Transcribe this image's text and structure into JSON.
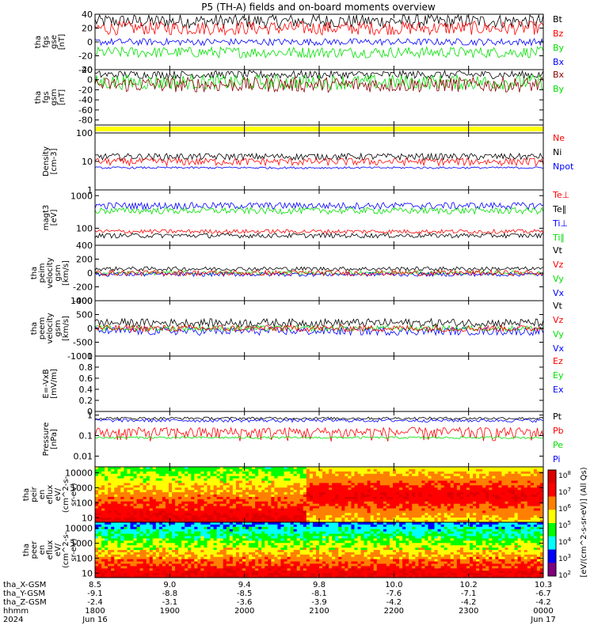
{
  "title": "P5 (TH-A) fields and on-board moments overview",
  "colors": {
    "black": "#000000",
    "red": "#ff0000",
    "green": "#00e000",
    "blue": "#0000ff",
    "darkred": "#8b0000",
    "yellow": "#ffff00"
  },
  "chart_data": [
    {
      "id": "fgs-gse",
      "type": "line",
      "ylabel": [
        "tha",
        "fgs",
        "gse",
        "[nT]"
      ],
      "ylim": [
        -40,
        40
      ],
      "yticks": [
        40,
        20,
        0,
        -20,
        -40
      ],
      "legend": [
        {
          "name": "Bt",
          "color": "#000000"
        },
        {
          "name": "Bz",
          "color": "#ff0000"
        },
        {
          "name": "By",
          "color": "#00e000"
        },
        {
          "name": "Bx",
          "color": "#0000ff"
        }
      ],
      "series": [
        {
          "name": "Bt",
          "color": "#000000",
          "base": 30,
          "noise": 10
        },
        {
          "name": "Bz",
          "color": "#ff0000",
          "base": 20,
          "noise": 10
        },
        {
          "name": "By",
          "color": "#00e000",
          "base": -15,
          "noise": 8
        },
        {
          "name": "Bx",
          "color": "#0000ff",
          "base": 0,
          "noise": 5
        }
      ]
    },
    {
      "id": "fgs-gsm",
      "type": "line",
      "ylabel": [
        "tha",
        "fgs",
        "gsm",
        "[nT]"
      ],
      "ylim": [
        -90,
        20
      ],
      "yticks": [
        20,
        0,
        -20,
        -40,
        -60,
        -80
      ],
      "legend": [
        {
          "name": "Bx",
          "color": "#8b0000"
        },
        {
          "name": "By",
          "color": "#00e000"
        }
      ],
      "series": [
        {
          "name": "Bt",
          "color": "#000000",
          "base": 10,
          "noise": 8
        },
        {
          "name": "By",
          "color": "#00e000",
          "base": -5,
          "noise": 15
        },
        {
          "name": "Bx",
          "color": "#8b0000",
          "base": -10,
          "noise": 15
        }
      ]
    },
    {
      "id": "flag",
      "type": "area",
      "ylabel": [],
      "legend": [],
      "series": []
    },
    {
      "id": "density",
      "type": "line",
      "log": true,
      "ylabel": [
        "Density",
        "[cm-3]"
      ],
      "ylim": [
        1,
        100
      ],
      "yticks": [
        100,
        10,
        1
      ],
      "legend": [
        {
          "name": "Ne",
          "color": "#ff0000"
        },
        {
          "name": "Ni",
          "color": "#000000"
        },
        {
          "name": "Npot",
          "color": "#0000ff"
        }
      ],
      "series": [
        {
          "name": "Ni",
          "color": "#000000",
          "base": 15,
          "noise": 4
        },
        {
          "name": "Ne",
          "color": "#ff0000",
          "base": 10,
          "noise": 3
        },
        {
          "name": "Npot",
          "color": "#0000ff",
          "base": 6,
          "noise": 0.5
        }
      ]
    },
    {
      "id": "temperature",
      "type": "line",
      "log": true,
      "ylabel": [
        "magt3",
        "[eV]"
      ],
      "ylim": [
        30,
        1500
      ],
      "yticks": [
        1000,
        100
      ],
      "legend": [
        {
          "name": "Te⊥",
          "color": "#ff0000"
        },
        {
          "name": "Te∥",
          "color": "#000000"
        },
        {
          "name": "Ti⊥",
          "color": "#0000ff"
        },
        {
          "name": "Ti∥",
          "color": "#00e000"
        }
      ],
      "series": [
        {
          "name": "Ti⊥",
          "color": "#0000ff",
          "base": 500,
          "noise": 120
        },
        {
          "name": "Ti∥",
          "color": "#00e000",
          "base": 350,
          "noise": 80
        },
        {
          "name": "Te⊥",
          "color": "#ff0000",
          "base": 80,
          "noise": 12
        },
        {
          "name": "Te∥",
          "color": "#000000",
          "base": 60,
          "noise": 10
        }
      ]
    },
    {
      "id": "peim-velocity",
      "type": "line",
      "ylabel": [
        "tha",
        "peim",
        "velocity",
        "gsm",
        "[km/s]"
      ],
      "ylim": [
        -400,
        400
      ],
      "yticks": [
        400,
        200,
        0,
        -200,
        -400
      ],
      "legend": [
        {
          "name": "Vt",
          "color": "#000000"
        },
        {
          "name": "Vz",
          "color": "#ff0000"
        },
        {
          "name": "Vy",
          "color": "#00e000"
        },
        {
          "name": "Vx",
          "color": "#0000ff"
        }
      ],
      "series": [
        {
          "name": "Vt",
          "color": "#000000",
          "base": 60,
          "noise": 30
        },
        {
          "name": "Vy",
          "color": "#00e000",
          "base": 0,
          "noise": 30
        },
        {
          "name": "Vx",
          "color": "#0000ff",
          "base": -20,
          "noise": 30
        },
        {
          "name": "Vz",
          "color": "#ff0000",
          "base": 0,
          "noise": 40
        }
      ]
    },
    {
      "id": "peem-velocity",
      "type": "line",
      "ylabel": [
        "tha",
        "peem",
        "velocity",
        "gsm",
        "[km/s]"
      ],
      "ylim": [
        -1000,
        1000
      ],
      "yticks": [
        1000,
        500,
        0,
        -500,
        -1000
      ],
      "legend": [
        {
          "name": "Vt",
          "color": "#000000"
        },
        {
          "name": "Vz",
          "color": "#ff0000"
        },
        {
          "name": "Vy",
          "color": "#00e000"
        },
        {
          "name": "Vx",
          "color": "#0000ff"
        }
      ],
      "series": [
        {
          "name": "Vt",
          "color": "#000000",
          "base": 200,
          "noise": 150
        },
        {
          "name": "Vx",
          "color": "#0000ff",
          "base": -100,
          "noise": 150
        },
        {
          "name": "Vy",
          "color": "#00e000",
          "base": 0,
          "noise": 100
        },
        {
          "name": "Vz",
          "color": "#ff0000",
          "base": 0,
          "noise": 120
        }
      ]
    },
    {
      "id": "efield",
      "type": "line",
      "ylabel": [
        "E=-VxB",
        "[mV/m]"
      ],
      "ylim": [
        0,
        1
      ],
      "yticks": [
        1.0,
        0.8,
        0.6,
        0.4,
        0.2,
        0.0
      ],
      "legend": [
        {
          "name": "Ez",
          "color": "#ff0000"
        },
        {
          "name": "Ey",
          "color": "#00e000"
        },
        {
          "name": "Ex",
          "color": "#0000ff"
        }
      ],
      "series": []
    },
    {
      "id": "pressure",
      "type": "line",
      "log": true,
      "ylabel": [
        "Pressure",
        "[nPa]"
      ],
      "ylim": [
        0.003,
        1.5
      ],
      "yticks": [
        1.0,
        0.1,
        0.01
      ],
      "legend": [
        {
          "name": "Pt",
          "color": "#000000"
        },
        {
          "name": "Pb",
          "color": "#ff0000"
        },
        {
          "name": "Pe",
          "color": "#00e000"
        },
        {
          "name": "Pi",
          "color": "#0000ff"
        }
      ],
      "series": [
        {
          "name": "Pt",
          "color": "#000000",
          "base": 0.7,
          "noise": 0.1
        },
        {
          "name": "Pi",
          "color": "#0000ff",
          "base": 0.55,
          "noise": 0.1
        },
        {
          "name": "Pb",
          "color": "#ff0000",
          "base": 0.15,
          "noise": 0.1
        },
        {
          "name": "Pe",
          "color": "#00e000",
          "base": 0.08,
          "noise": 0.01
        }
      ]
    },
    {
      "id": "peir-spectrogram",
      "type": "heatmap",
      "log": true,
      "ylabel": [
        "tha",
        "peir",
        "en",
        "eflux",
        "eV/",
        "(cm^2-s-",
        "sr-eV)"
      ],
      "ylim": [
        5,
        25000
      ],
      "yticks": [
        10000,
        1000,
        100,
        10
      ],
      "legend": [],
      "series": []
    },
    {
      "id": "peer-spectrogram",
      "type": "heatmap",
      "log": true,
      "ylabel": [
        "tha",
        "peer",
        "en",
        "eflux",
        "eV/",
        "(cm^2-s-",
        "sr-eV)"
      ],
      "ylim": [
        5,
        25000
      ],
      "yticks": [
        10000,
        1000,
        100,
        10
      ],
      "legend": [],
      "series": []
    }
  ],
  "colorbar": {
    "tick_exponents": [
      "8",
      "7",
      "6",
      "5",
      "4",
      "3",
      "2"
    ],
    "tick_base": "10",
    "label": "[eV/(cm^2-s-sr-eV)] (All Qs)",
    "colors": [
      "#800080",
      "#0000ff",
      "#00ffff",
      "#00ff00",
      "#ffff00",
      "#ff8000",
      "#ff0000",
      "#e00000"
    ]
  },
  "x_axis": {
    "rows": [
      {
        "label": "tha_X-GSM",
        "values": [
          "8.5",
          "9.0",
          "9.4",
          "9.8",
          "10.0",
          "10.2",
          "10.3"
        ]
      },
      {
        "label": "tha_Y-GSM",
        "values": [
          "-9.1",
          "-8.8",
          "-8.5",
          "-8.1",
          "-7.6",
          "-7.1",
          "-6.7"
        ]
      },
      {
        "label": "tha_Z-GSM",
        "values": [
          "-2.4",
          "-3.1",
          "-3.6",
          "-3.9",
          "-4.2",
          "-4.2",
          "-4.2"
        ]
      },
      {
        "label": "hhmm",
        "values": [
          "1800",
          "1900",
          "2000",
          "2100",
          "2200",
          "2300",
          "0000"
        ]
      },
      {
        "label": "2024",
        "values": [
          "Jun 16",
          "",
          "",
          "",
          "",
          "",
          "Jun 17"
        ]
      }
    ],
    "hours": [
      18,
      19,
      20,
      21,
      22,
      23,
      24
    ],
    "range": [
      18,
      24
    ]
  }
}
